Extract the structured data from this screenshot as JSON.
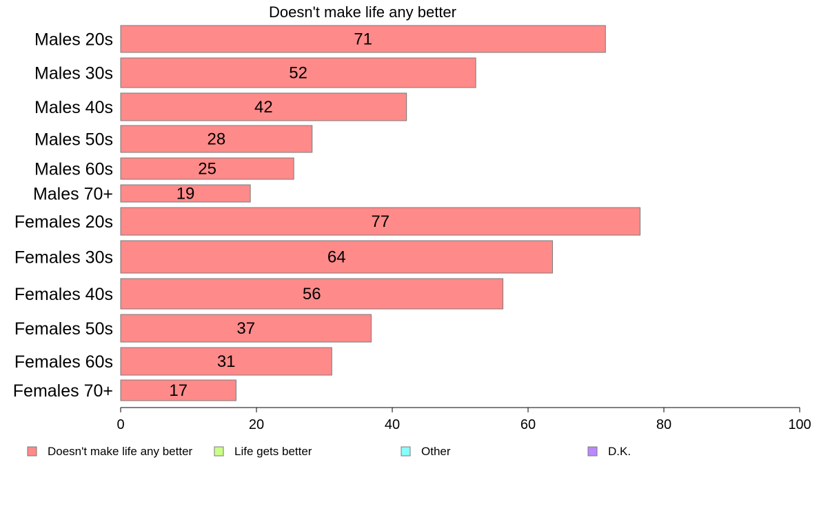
{
  "chart_data": {
    "type": "bar",
    "orientation": "horizontal",
    "title": "Doesn't make life any better",
    "xlabel": "",
    "ylabel": "",
    "categories": [
      "Males 20s",
      "Males 30s",
      "Males 40s",
      "Males 50s",
      "Males 60s",
      "Males 70+",
      "Females 20s",
      "Females 30s",
      "Females 40s",
      "Females 50s",
      "Females 60s",
      "Females 70+"
    ],
    "series": [
      {
        "name": "Doesn't make life any better",
        "color": "#ff8a8a",
        "values": [
          71.4,
          52.3,
          42.1,
          28.2,
          25.5,
          19.1,
          76.5,
          63.6,
          56.3,
          36.9,
          31.1,
          17.0
        ],
        "data_labels": [
          "71",
          "52",
          "42",
          "28",
          "25",
          "19",
          "77",
          "64",
          "56",
          "37",
          "31",
          "17"
        ]
      }
    ],
    "xlim": [
      0,
      100
    ],
    "xticks": [
      "0",
      "20",
      "40",
      "60",
      "80",
      "100"
    ],
    "grid": false,
    "legend": {
      "placement": "bottom",
      "entries": [
        {
          "label": "Doesn't make life any better",
          "color": "#ff8a8a"
        },
        {
          "label": "Life gets better",
          "color": "#ccff88"
        },
        {
          "label": "Other",
          "color": "#88ffff"
        },
        {
          "label": "D.K.",
          "color": "#bb88ff"
        }
      ]
    }
  }
}
